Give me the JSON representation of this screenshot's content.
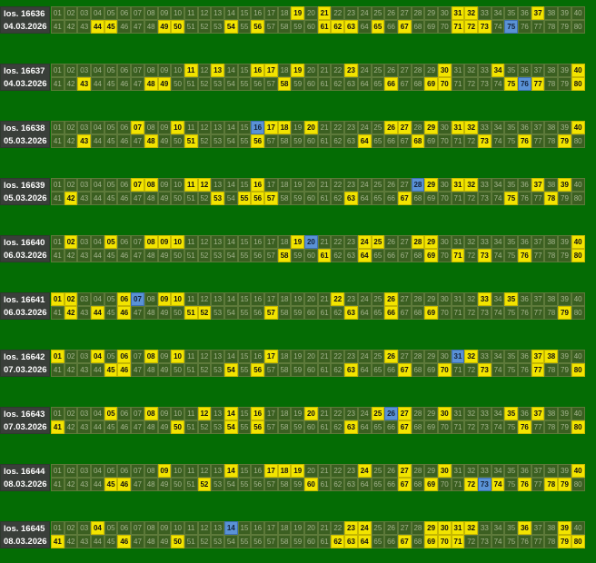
{
  "colors": {
    "background": "#046c04",
    "cell": "#3b5f21",
    "cell_text": "#a4b48e",
    "hit": "#f2e400",
    "bonus": "#5a92d6",
    "label_bg": "#3a3f3a"
  },
  "draws": [
    {
      "label": "los. 16636",
      "date": "04.03.2026",
      "hits": [
        19,
        21,
        31,
        32,
        37,
        44,
        45,
        49,
        50,
        54,
        56,
        61,
        62,
        63,
        65,
        67,
        71,
        72,
        73
      ],
      "bonus": [
        75
      ]
    },
    {
      "label": "los. 16637",
      "date": "04.03.2026",
      "hits": [
        11,
        13,
        16,
        17,
        19,
        23,
        30,
        34,
        40,
        43,
        48,
        49,
        58,
        66,
        69,
        70,
        75,
        77,
        80
      ],
      "bonus": [
        76
      ]
    },
    {
      "label": "los. 16638",
      "date": "05.03.2026",
      "hits": [
        7,
        10,
        17,
        18,
        20,
        26,
        27,
        29,
        31,
        32,
        40,
        43,
        48,
        51,
        56,
        64,
        68,
        73,
        76,
        79
      ],
      "bonus": [
        16
      ]
    },
    {
      "label": "los. 16639",
      "date": "05.03.2026",
      "hits": [
        7,
        8,
        11,
        12,
        16,
        29,
        31,
        32,
        37,
        39,
        42,
        53,
        55,
        56,
        57,
        63,
        67,
        75,
        78
      ],
      "bonus": [
        28
      ]
    },
    {
      "label": "los. 16640",
      "date": "06.03.2026",
      "hits": [
        2,
        5,
        8,
        9,
        10,
        19,
        24,
        25,
        28,
        29,
        40,
        58,
        61,
        64,
        69,
        71,
        73,
        76,
        80
      ],
      "bonus": [
        20
      ]
    },
    {
      "label": "los. 16641",
      "date": "06.03.2026",
      "hits": [
        1,
        2,
        6,
        9,
        10,
        22,
        26,
        33,
        35,
        42,
        44,
        46,
        51,
        52,
        57,
        63,
        66,
        69,
        79
      ],
      "bonus": [
        7
      ]
    },
    {
      "label": "los. 16642",
      "date": "07.03.2026",
      "hits": [
        1,
        4,
        6,
        8,
        10,
        17,
        26,
        32,
        37,
        38,
        45,
        46,
        54,
        56,
        63,
        67,
        70,
        73,
        77,
        80
      ],
      "bonus": [
        31
      ]
    },
    {
      "label": "los. 16643",
      "date": "07.03.2026",
      "hits": [
        5,
        8,
        12,
        14,
        16,
        20,
        25,
        27,
        30,
        35,
        37,
        41,
        50,
        54,
        56,
        63,
        67,
        76,
        80
      ],
      "bonus": [
        26
      ]
    },
    {
      "label": "los. 16644",
      "date": "08.03.2026",
      "hits": [
        9,
        14,
        17,
        18,
        19,
        24,
        27,
        30,
        40,
        45,
        46,
        52,
        60,
        67,
        69,
        72,
        74,
        76,
        78,
        79
      ],
      "bonus": [
        73
      ]
    },
    {
      "label": "los. 16645",
      "date": "08.03.2026",
      "hits": [
        4,
        23,
        24,
        29,
        30,
        31,
        32,
        36,
        39,
        41,
        46,
        50,
        62,
        63,
        64,
        67,
        69,
        70,
        71,
        79,
        80
      ],
      "bonus": [
        14
      ]
    }
  ]
}
